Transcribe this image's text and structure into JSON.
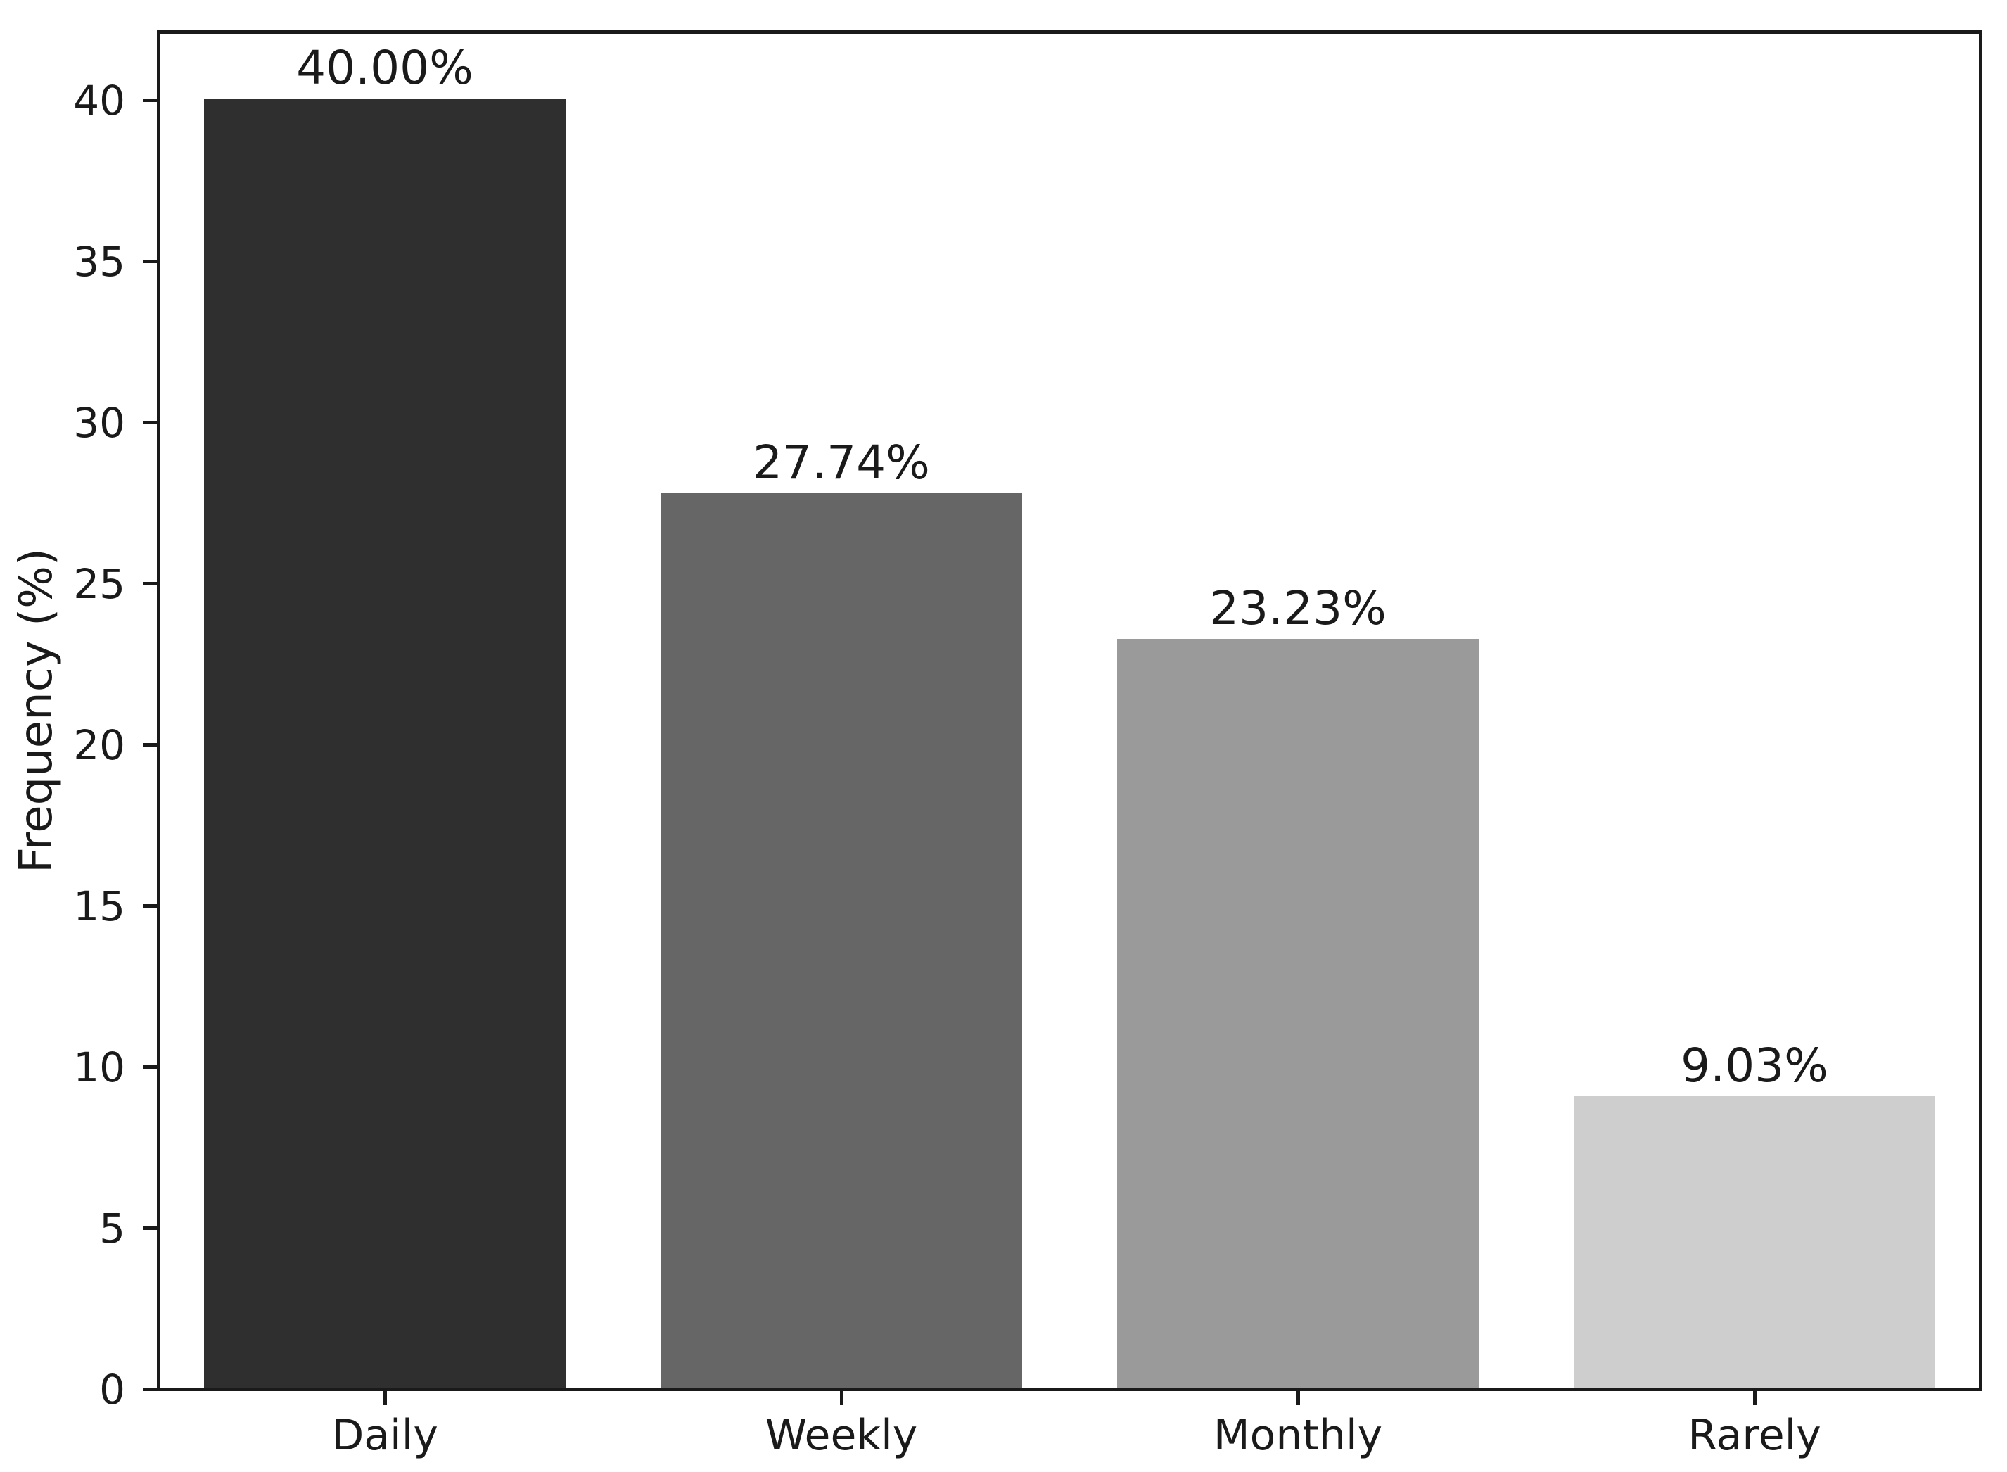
{
  "chart_data": {
    "type": "bar",
    "title": "",
    "categories": [
      "Daily",
      "Weekly",
      "Monthly",
      "Rarely"
    ],
    "values": [
      40.0,
      27.74,
      23.23,
      9.03
    ],
    "bar_labels": [
      "40.00%",
      "27.74%",
      "23.23%",
      "9.03%"
    ],
    "bar_colors": [
      "#2f2f2f",
      "#666666",
      "#9a9a9a",
      "#cecece"
    ],
    "xlabel": "",
    "ylabel": "Frequency (%)",
    "ylim": [
      0,
      42
    ],
    "yticks": [
      0,
      5,
      10,
      15,
      20,
      25,
      30,
      35,
      40
    ],
    "bar_width_fraction": 0.198,
    "grid": false,
    "legend_position": "none",
    "spine_color": "#1a1a1a",
    "text_color": "#1a1a1a",
    "background_color": "#ffffff"
  }
}
